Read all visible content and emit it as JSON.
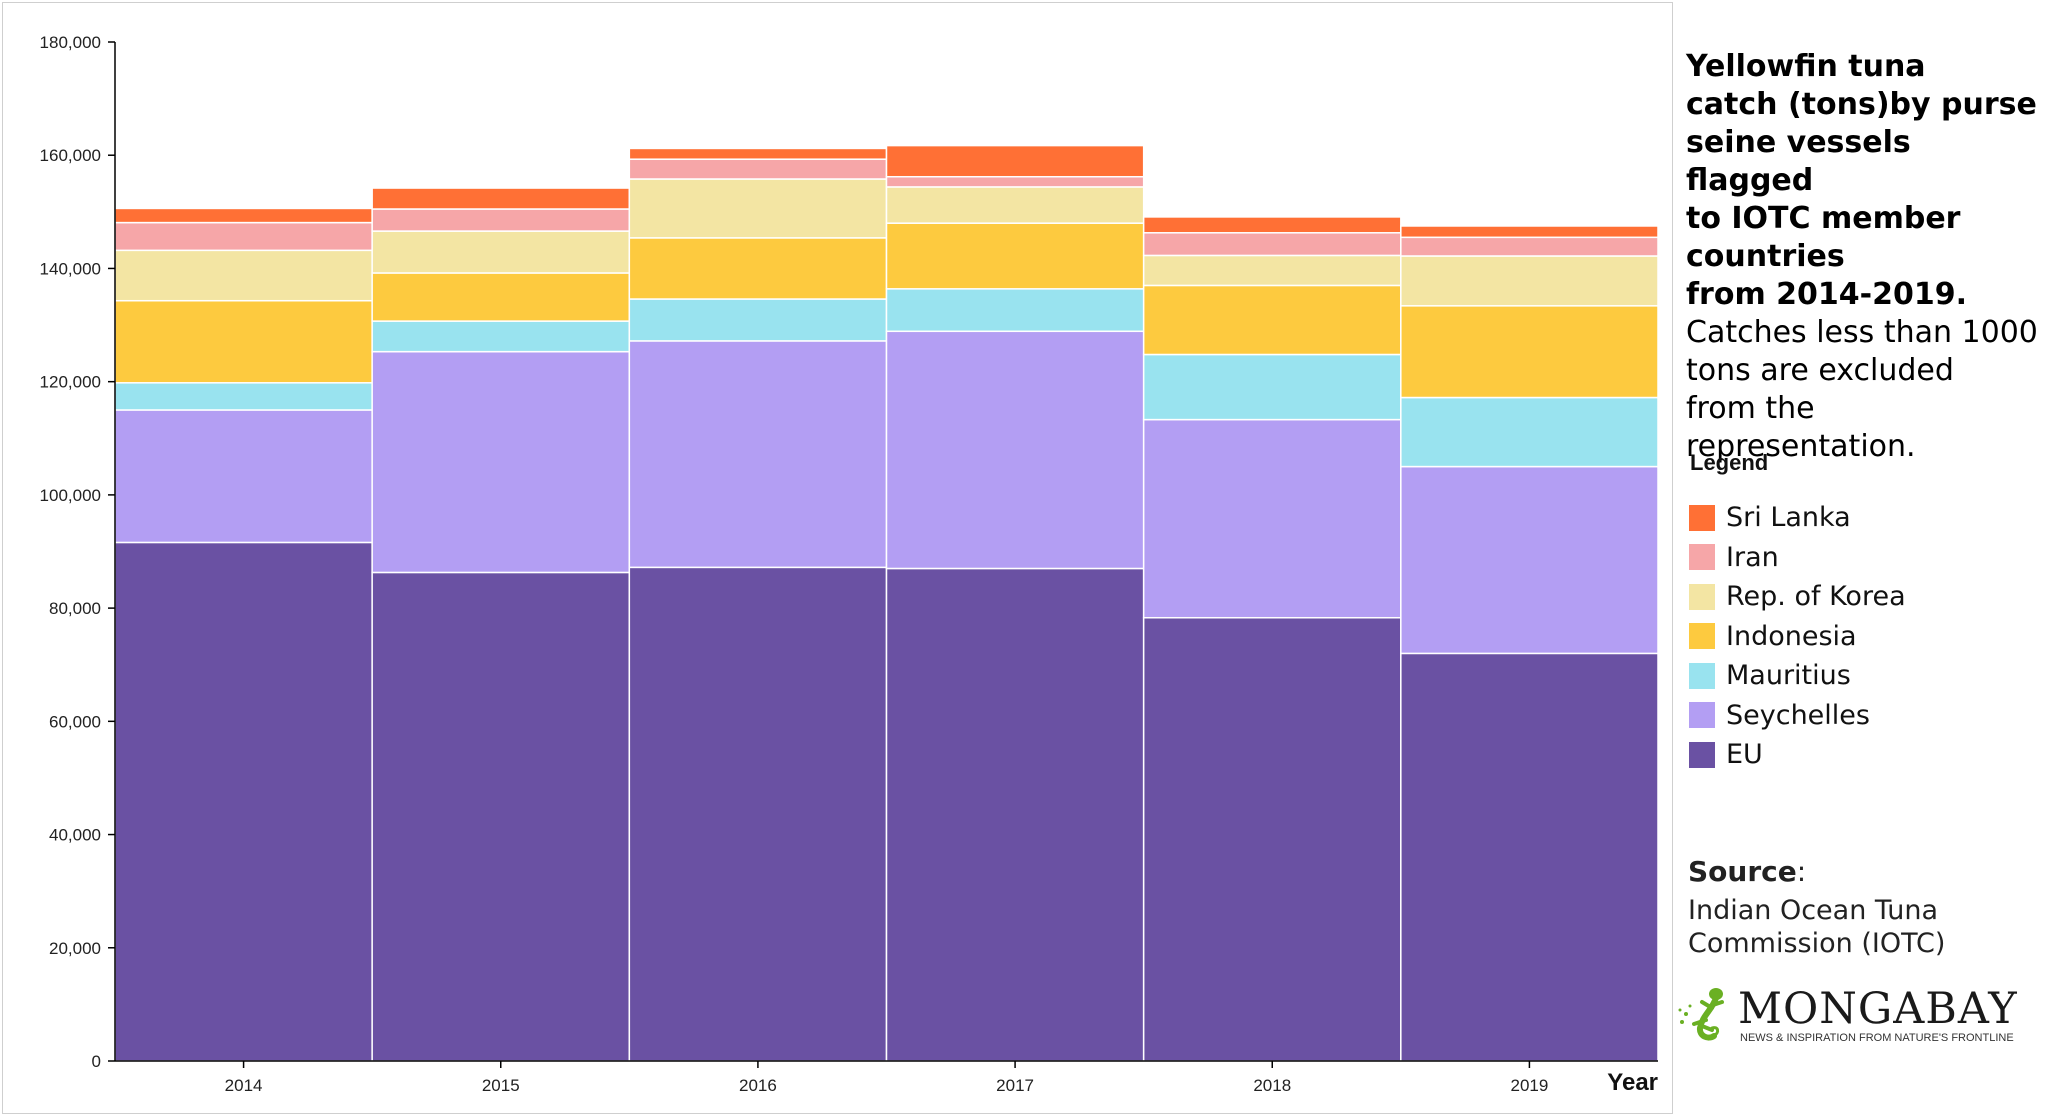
{
  "chart_data": {
    "type": "bar",
    "stacked": true,
    "categories": [
      "2014",
      "2015",
      "2016",
      "2017",
      "2018",
      "2019"
    ],
    "xlabel": "Year",
    "ylabel": "",
    "ylim": [
      0,
      180000
    ],
    "yticks": [
      0,
      20000,
      40000,
      60000,
      80000,
      100000,
      120000,
      140000,
      160000,
      180000
    ],
    "ytick_labels": [
      "0",
      "20,000",
      "40,000",
      "60,000",
      "80,000",
      "100,000",
      "120,000",
      "140,000",
      "160,000",
      "180,000"
    ],
    "grid": false,
    "legend_position": "right",
    "series": [
      {
        "name": "EU",
        "color": "#6a51a3",
        "values": [
          91600,
          86300,
          87200,
          87000,
          78300,
          72000
        ]
      },
      {
        "name": "Seychelles",
        "color": "#b39ef3",
        "values": [
          23400,
          39000,
          40000,
          41900,
          35000,
          33000
        ]
      },
      {
        "name": "Mauritius",
        "color": "#99e3ef",
        "values": [
          4800,
          5400,
          7400,
          7500,
          11500,
          12200
        ]
      },
      {
        "name": "Indonesia",
        "color": "#fdca3f",
        "values": [
          14500,
          8500,
          10800,
          11600,
          12200,
          16200
        ]
      },
      {
        "name": "Rep. of Korea",
        "color": "#f3e5a3",
        "values": [
          8900,
          7400,
          10400,
          6400,
          5300,
          8800
        ]
      },
      {
        "name": "Iran",
        "color": "#f6a6a8",
        "values": [
          4900,
          3900,
          3500,
          1800,
          4000,
          3300
        ]
      },
      {
        "name": "Sri Lanka",
        "color": "#ff7035",
        "values": [
          2500,
          3700,
          1900,
          5500,
          2800,
          2000
        ]
      }
    ]
  },
  "panel": {
    "title_bold": [
      "Yellowfin tuna",
      "catch (tons)by purse",
      "seine vessels flagged",
      "to IOTC member",
      "countries",
      "from 2014-2019."
    ],
    "title_normal": [
      "Catches less than 1000",
      "tons are excluded",
      "from the representation."
    ],
    "legend_title": "Legend",
    "legend_items": [
      {
        "label": "Sri Lanka",
        "color": "#ff7035"
      },
      {
        "label": "Iran",
        "color": "#f6a6a8"
      },
      {
        "label": "Rep. of Korea",
        "color": "#f3e5a3"
      },
      {
        "label": "Indonesia",
        "color": "#fdca3f"
      },
      {
        "label": "Mauritius",
        "color": "#99e3ef"
      },
      {
        "label": "Seychelles",
        "color": "#b39ef3"
      },
      {
        "label": "EU",
        "color": "#6a51a3"
      }
    ],
    "source_label": "Source",
    "source_colon": ":",
    "source_lines": [
      "Indian Ocean Tuna",
      "Commission (IOTC)"
    ],
    "logo_word": "MONGABAY",
    "logo_tagline": "NEWS & INSPIRATION FROM NATURE'S FRONTLINE",
    "logo_icon": "gecko-icon",
    "logo_color": "#6ab023"
  }
}
